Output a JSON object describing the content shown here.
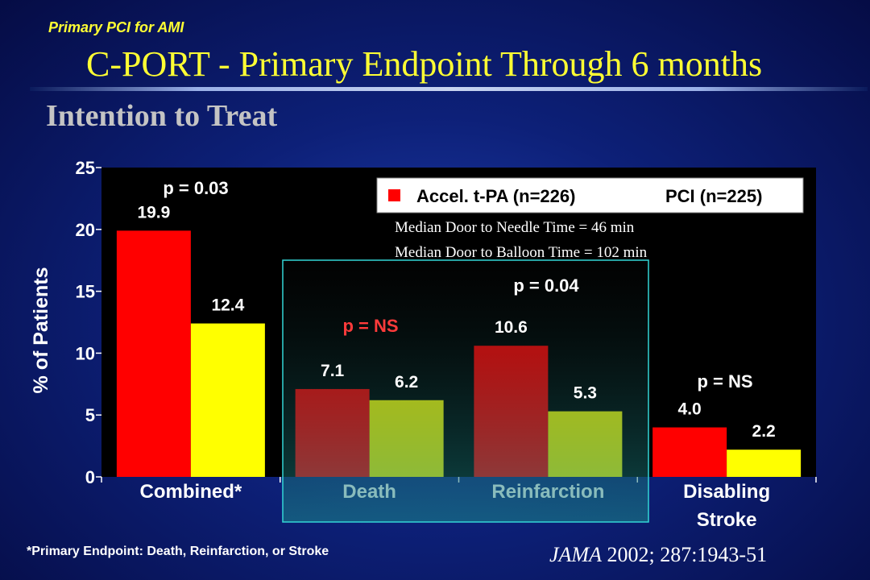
{
  "header": {
    "kicker": "Primary PCI for AMI",
    "title": "C-PORT - Primary Endpoint Through 6 months",
    "subtitle": "Intention to Treat"
  },
  "chart_data": {
    "type": "bar",
    "ylabel": "% of Patients",
    "ylim": [
      0,
      25
    ],
    "yticks": [
      "0",
      "5",
      "10",
      "15",
      "20",
      "25"
    ],
    "categories": [
      "Combined*",
      "Death",
      "Reinfarction",
      "Disabling\nStroke"
    ],
    "series": [
      {
        "name": "Accel. t-PA (n=226)",
        "color": "#ff0000",
        "values": [
          19.9,
          7.1,
          10.6,
          4.0
        ],
        "labels": [
          "19.9",
          "7.1",
          "10.6",
          "4.0"
        ]
      },
      {
        "name": "PCI (n=225)",
        "color": "#ffff00",
        "values": [
          12.4,
          6.2,
          5.3,
          2.2
        ],
        "labels": [
          "12.4",
          "6.2",
          "5.3",
          "2.2"
        ]
      }
    ],
    "pvalues": [
      "p = 0.03",
      "p = NS",
      "p = 0.04",
      "p = NS"
    ],
    "legend_placement": "top-right",
    "annotations": [
      "Median Door to Needle Time = 46 min",
      "Median Door to Balloon Time = 102 min"
    ],
    "grid": false
  },
  "footer": {
    "footnote": "*Primary Endpoint: Death, Reinfarction, or Stroke",
    "journal": "JAMA",
    "reference": " 2002; 287:1943-51"
  },
  "colors": {
    "title": "#ffff33",
    "background": "#0d2078",
    "plot": "#000000",
    "highlight_box": "#00c8c8",
    "pvalue_ns_death": "#ff3b3b"
  }
}
